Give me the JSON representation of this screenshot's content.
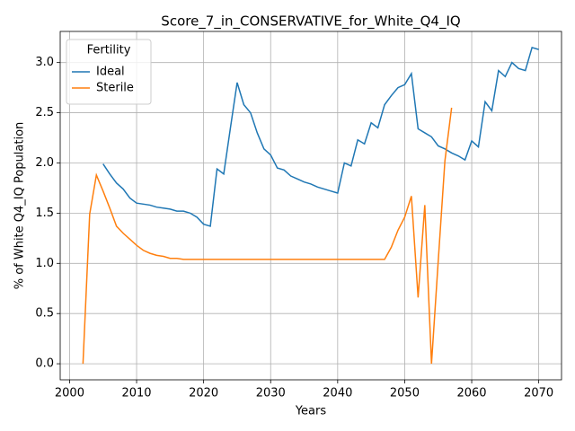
{
  "chart_data": {
    "type": "line",
    "title": "Score_7_in_CONSERVATIVE_for_White_Q4_IQ",
    "xlabel": "Years",
    "ylabel": "% of White Q4_IQ Population",
    "legend_title": "Fertility",
    "legend_loc": "upper left",
    "grid": true,
    "x": [
      2002,
      2003,
      2004,
      2005,
      2006,
      2007,
      2008,
      2009,
      2010,
      2011,
      2012,
      2013,
      2014,
      2015,
      2016,
      2017,
      2018,
      2019,
      2020,
      2021,
      2022,
      2023,
      2024,
      2025,
      2026,
      2027,
      2028,
      2029,
      2030,
      2031,
      2032,
      2033,
      2034,
      2035,
      2036,
      2037,
      2038,
      2039,
      2040,
      2041,
      2042,
      2043,
      2044,
      2045,
      2046,
      2047,
      2048,
      2049,
      2050,
      2051,
      2052,
      2053,
      2054,
      2055,
      2056,
      2057,
      2058,
      2059,
      2060,
      2061,
      2062,
      2063,
      2064,
      2065,
      2066,
      2067,
      2068,
      2069,
      2070
    ],
    "series": [
      {
        "name": "Ideal",
        "color": "#1f77b4",
        "values": [
          null,
          null,
          null,
          1.99,
          1.89,
          1.8,
          1.74,
          1.65,
          1.6,
          1.59,
          1.58,
          1.56,
          1.55,
          1.54,
          1.52,
          1.52,
          1.5,
          1.46,
          1.39,
          1.37,
          1.94,
          1.89,
          2.35,
          2.8,
          2.58,
          2.5,
          2.3,
          2.14,
          2.08,
          1.95,
          1.93,
          1.87,
          1.84,
          1.81,
          1.79,
          1.76,
          1.74,
          1.72,
          1.7,
          2.0,
          1.97,
          2.23,
          2.19,
          2.4,
          2.35,
          2.58,
          2.67,
          2.75,
          2.78,
          2.89,
          2.34,
          2.3,
          2.26,
          2.17,
          2.14,
          2.1,
          2.07,
          2.03,
          2.22,
          2.16,
          2.61,
          2.52,
          2.92,
          2.86,
          3.0,
          2.94,
          2.92,
          3.15,
          3.13
        ]
      },
      {
        "name": "Sterile",
        "color": "#ff7f0e",
        "values": [
          0.0,
          1.49,
          1.88,
          1.72,
          1.55,
          1.37,
          1.3,
          1.24,
          1.18,
          1.13,
          1.1,
          1.08,
          1.07,
          1.05,
          1.05,
          1.04,
          1.04,
          1.04,
          1.04,
          1.04,
          1.04,
          1.04,
          1.04,
          1.04,
          1.04,
          1.04,
          1.04,
          1.04,
          1.04,
          1.04,
          1.04,
          1.04,
          1.04,
          1.04,
          1.04,
          1.04,
          1.04,
          1.04,
          1.04,
          1.04,
          1.04,
          1.04,
          1.04,
          1.04,
          1.04,
          1.04,
          1.16,
          1.33,
          1.46,
          1.67,
          0.66,
          1.58,
          0.0,
          1.02,
          2.02,
          2.55,
          null,
          null,
          null,
          null,
          null,
          null,
          null,
          null,
          null,
          null,
          null,
          null,
          null
        ]
      }
    ],
    "xlim": [
      1998.6,
      2073.4
    ],
    "xticks": [
      2000,
      2010,
      2020,
      2030,
      2040,
      2050,
      2060,
      2070
    ],
    "ylim": [
      -0.16,
      3.31
    ],
    "yticks": [
      {
        "value": 0,
        "label": "0.0"
      },
      0.5,
      {
        "value": 1,
        "label": "1.0"
      },
      1.5,
      {
        "value": 2,
        "label": "2.0"
      },
      2.5,
      {
        "value": 3,
        "label": "3.0"
      }
    ]
  }
}
